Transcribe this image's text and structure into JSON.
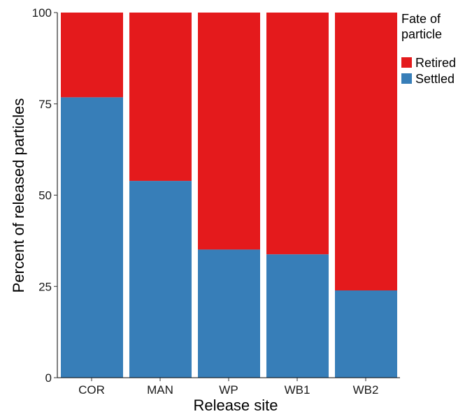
{
  "chart_data": {
    "type": "bar",
    "stacked": true,
    "categories": [
      "COR",
      "MAN",
      "WP",
      "WB1",
      "WB2"
    ],
    "series": [
      {
        "name": "Settled",
        "color": "#377eb8",
        "values": [
          76.8,
          53.9,
          35.1,
          33.8,
          23.9
        ]
      },
      {
        "name": "Retired",
        "color": "#e41a1c",
        "values": [
          23.2,
          46.1,
          64.9,
          66.2,
          76.1
        ]
      }
    ],
    "xlabel": "Release site",
    "ylabel": "Percent of released particles",
    "ylim": [
      0,
      100
    ],
    "yticks": [
      0,
      25,
      50,
      75,
      100
    ],
    "grid": false,
    "legend": {
      "title_lines": [
        "Fate of",
        "particle"
      ],
      "placement": "right",
      "entries": [
        {
          "label": "Retired",
          "color": "#e41a1c"
        },
        {
          "label": "Settled",
          "color": "#377eb8"
        }
      ]
    }
  }
}
